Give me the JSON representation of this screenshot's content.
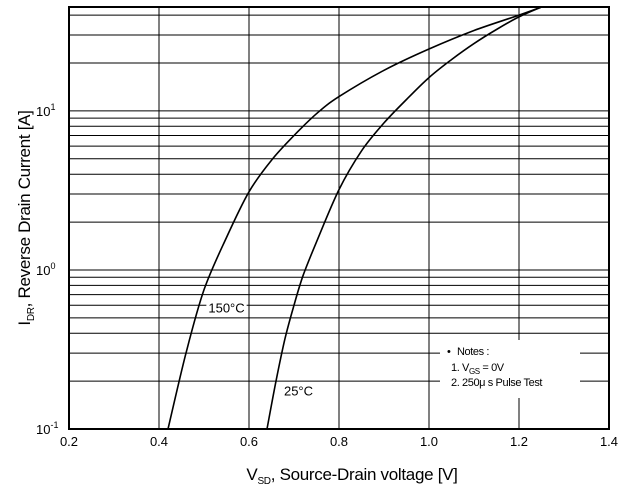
{
  "chart_data": {
    "type": "line",
    "title": "",
    "xlabel": {
      "main": "V",
      "sub": "SD",
      "rest": ", Source-Drain voltage [V]"
    },
    "ylabel": {
      "main": "I",
      "sub": "DR",
      "rest": ", Reverse Drain Current [A]"
    },
    "xlim": [
      0.2,
      1.4
    ],
    "ylim": [
      0.1,
      45
    ],
    "yscale": "log",
    "grid": true,
    "x_ticks": [
      "0.2",
      "0.4",
      "0.6",
      "0.8",
      "1.0",
      "1.2",
      "1.4"
    ],
    "x_tick_values": [
      0.2,
      0.4,
      0.6,
      0.8,
      1.0,
      1.2,
      1.4
    ],
    "y_ticks": [
      {
        "value": 0.1,
        "base": "10",
        "exp": "-1"
      },
      {
        "value": 1,
        "base": "10",
        "exp": "0"
      },
      {
        "value": 10,
        "base": "10",
        "exp": "1"
      }
    ],
    "series": [
      {
        "name": "150°C",
        "x": [
          0.42,
          0.46,
          0.5,
          0.55,
          0.6,
          0.65,
          0.7,
          0.75,
          0.8,
          0.9,
          1.0,
          1.1,
          1.2,
          1.25
        ],
        "y": [
          0.1,
          0.3,
          0.75,
          1.6,
          3.1,
          4.9,
          7.0,
          9.6,
          12.3,
          18.0,
          24.5,
          32.0,
          40.0,
          45.0
        ]
      },
      {
        "name": "25°C",
        "x": [
          0.64,
          0.66,
          0.68,
          0.7,
          0.72,
          0.75,
          0.8,
          0.85,
          0.9,
          0.95,
          1.0,
          1.05,
          1.1,
          1.15,
          1.2,
          1.25
        ],
        "y": [
          0.1,
          0.2,
          0.37,
          0.6,
          0.92,
          1.5,
          3.2,
          5.6,
          8.4,
          11.8,
          16.2,
          21.0,
          26.5,
          32.5,
          39.0,
          45.0
        ]
      }
    ],
    "curve_labels": [
      {
        "text": "150°C",
        "x": 0.55,
        "y": 0.58
      },
      {
        "text": "25°C",
        "x": 0.71,
        "y": 0.175
      }
    ],
    "notes": {
      "bullet": "•",
      "heading": "Notes :",
      "line1_prefix": "1. V",
      "line1_sub": "GS",
      "line1_rest": " = 0V",
      "line2": "2. 250μ s Pulse Test"
    }
  }
}
